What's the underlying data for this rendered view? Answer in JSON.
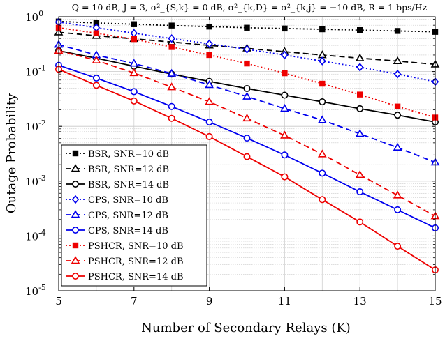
{
  "chart_data": {
    "type": "line",
    "title": "Q = 10 dB, J = 3, σ²_{S,k} = 0 dB, σ²_{k,D} = σ²_{k,j} = −10 dB, R = 1 bps/Hz",
    "xlabel": "Number of Secondary Relays (K)",
    "ylabel": "Outage Probability",
    "x_scale": "linear",
    "y_scale": "log",
    "xlim": [
      5,
      15
    ],
    "ylim": [
      1e-05,
      1
    ],
    "x_ticks": [
      "5",
      "7",
      "9",
      "11",
      "13",
      "15"
    ],
    "y_ticks": [
      "10^0",
      "10^-1",
      "10^-2",
      "10^-3",
      "10^-4",
      "10^-5"
    ],
    "grid": true,
    "legend_position": "lower-left",
    "series": [
      {
        "name": "BSR, SNR=10 dB",
        "color": "#000000",
        "dash": "dotted",
        "marker": "square",
        "x": [
          5,
          6,
          7,
          8,
          9,
          10,
          11,
          12,
          13,
          14,
          15
        ],
        "y": [
          0.82,
          0.77,
          0.73,
          0.69,
          0.66,
          0.63,
          0.61,
          0.59,
          0.57,
          0.55,
          0.53
        ]
      },
      {
        "name": "BSR, SNR=12 dB",
        "color": "#000000",
        "dash": "dashed",
        "marker": "triangle",
        "x": [
          5,
          6,
          7,
          8,
          9,
          10,
          11,
          12,
          13,
          14,
          15
        ],
        "y": [
          0.52,
          0.45,
          0.395,
          0.345,
          0.3,
          0.265,
          0.23,
          0.2,
          0.175,
          0.155,
          0.135
        ]
      },
      {
        "name": "BSR, SNR=14 dB",
        "color": "#000000",
        "dash": "solid",
        "marker": "circle",
        "x": [
          5,
          6,
          7,
          8,
          9,
          10,
          11,
          12,
          13,
          14,
          15
        ],
        "y": [
          0.24,
          0.175,
          0.125,
          0.09,
          0.066,
          0.049,
          0.037,
          0.028,
          0.021,
          0.016,
          0.012
        ]
      },
      {
        "name": "CPS, SNR=10 dB",
        "color": "#0000ee",
        "dash": "dotted",
        "marker": "diamond",
        "x": [
          5,
          6,
          7,
          8,
          9,
          10,
          11,
          12,
          13,
          14,
          15
        ],
        "y": [
          0.8,
          0.63,
          0.5,
          0.4,
          0.32,
          0.255,
          0.2,
          0.155,
          0.12,
          0.09,
          0.065
        ]
      },
      {
        "name": "CPS, SNR=12 dB",
        "color": "#0000ee",
        "dash": "dashed",
        "marker": "triangle",
        "x": [
          5,
          6,
          7,
          8,
          9,
          10,
          11,
          12,
          13,
          14,
          15
        ],
        "y": [
          0.31,
          0.2,
          0.14,
          0.092,
          0.057,
          0.035,
          0.021,
          0.013,
          0.0073,
          0.0041,
          0.0022
        ]
      },
      {
        "name": "CPS, SNR=14 dB",
        "color": "#0000ee",
        "dash": "solid",
        "marker": "circle",
        "x": [
          5,
          6,
          7,
          8,
          9,
          10,
          11,
          12,
          13,
          14,
          15
        ],
        "y": [
          0.13,
          0.076,
          0.043,
          0.023,
          0.012,
          0.0061,
          0.003,
          0.0014,
          0.00064,
          0.0003,
          0.00014
        ]
      },
      {
        "name": "PSHCR, SNR=10 dB",
        "color": "#ee0000",
        "dash": "dotted",
        "marker": "square",
        "x": [
          5,
          6,
          7,
          8,
          9,
          10,
          11,
          12,
          13,
          14,
          15
        ],
        "y": [
          0.63,
          0.5,
          0.39,
          0.28,
          0.2,
          0.14,
          0.093,
          0.06,
          0.038,
          0.023,
          0.0145
        ]
      },
      {
        "name": "PSHCR, SNR=12 dB",
        "color": "#ee0000",
        "dash": "dashed",
        "marker": "triangle",
        "x": [
          5,
          6,
          7,
          8,
          9,
          10,
          11,
          12,
          13,
          14,
          15
        ],
        "y": [
          0.24,
          0.16,
          0.094,
          0.052,
          0.028,
          0.014,
          0.0068,
          0.0031,
          0.0013,
          0.00055,
          0.00023
        ]
      },
      {
        "name": "PSHCR, SNR=14 dB",
        "color": "#ee0000",
        "dash": "solid",
        "marker": "circle",
        "x": [
          5,
          6,
          7,
          8,
          9,
          10,
          11,
          12,
          13,
          14,
          15
        ],
        "y": [
          0.11,
          0.056,
          0.029,
          0.014,
          0.0065,
          0.0028,
          0.0012,
          0.00046,
          0.00018,
          6.5e-05,
          2.4e-05
        ]
      }
    ]
  }
}
